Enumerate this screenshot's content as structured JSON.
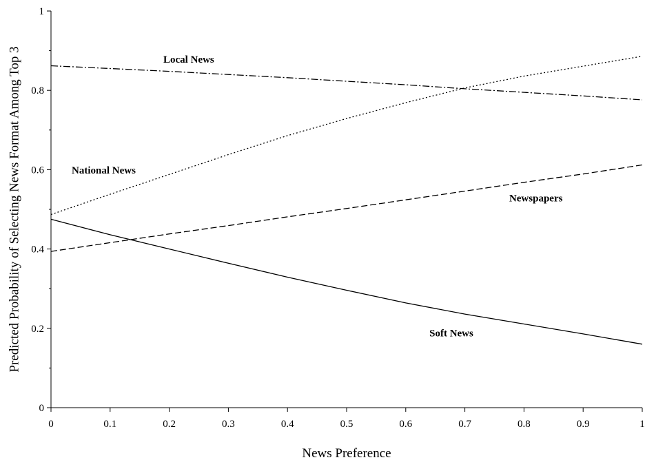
{
  "chart_data": {
    "type": "line",
    "title": "",
    "xlabel": "News Preference",
    "ylabel": "Predicted Probability of Selecting News Format Among Top 3",
    "xlim": [
      0,
      1
    ],
    "ylim": [
      0,
      1
    ],
    "x_ticks": [
      "0",
      "0.1",
      "0.2",
      "0.3",
      "0.4",
      "0.5",
      "0.6",
      "0.7",
      "0.8",
      "0.9",
      "1"
    ],
    "y_ticks": [
      "0",
      "0.2",
      "0.4",
      "0.6",
      "0.8",
      "1"
    ],
    "grid": false,
    "legend": "none (series labeled directly on the plot)",
    "x": [
      0,
      0.1,
      0.2,
      0.3,
      0.4,
      0.5,
      0.6,
      0.7,
      0.8,
      0.9,
      1
    ],
    "series": [
      {
        "name": "Local News",
        "dash": "dash-dot",
        "values": [
          0.862,
          0.855,
          0.848,
          0.84,
          0.832,
          0.823,
          0.814,
          0.804,
          0.795,
          0.786,
          0.776
        ]
      },
      {
        "name": "National News",
        "dash": "dotted",
        "values": [
          0.487,
          0.538,
          0.588,
          0.638,
          0.686,
          0.729,
          0.769,
          0.806,
          0.836,
          0.861,
          0.886
        ]
      },
      {
        "name": "Newspapers",
        "dash": "dashed",
        "values": [
          0.394,
          0.416,
          0.438,
          0.459,
          0.481,
          0.502,
          0.524,
          0.546,
          0.568,
          0.589,
          0.612
        ]
      },
      {
        "name": "Soft News",
        "dash": "solid",
        "values": [
          0.475,
          0.436,
          0.4,
          0.364,
          0.329,
          0.296,
          0.264,
          0.236,
          0.211,
          0.186,
          0.16
        ]
      }
    ],
    "annotations": [
      {
        "text": "Local News",
        "x": 0.19,
        "y": 0.87
      },
      {
        "text": "National News",
        "x": 0.035,
        "y": 0.59
      },
      {
        "text": "Newspapers",
        "x": 0.775,
        "y": 0.52
      },
      {
        "text": "Soft News",
        "x": 0.64,
        "y": 0.18
      }
    ]
  }
}
